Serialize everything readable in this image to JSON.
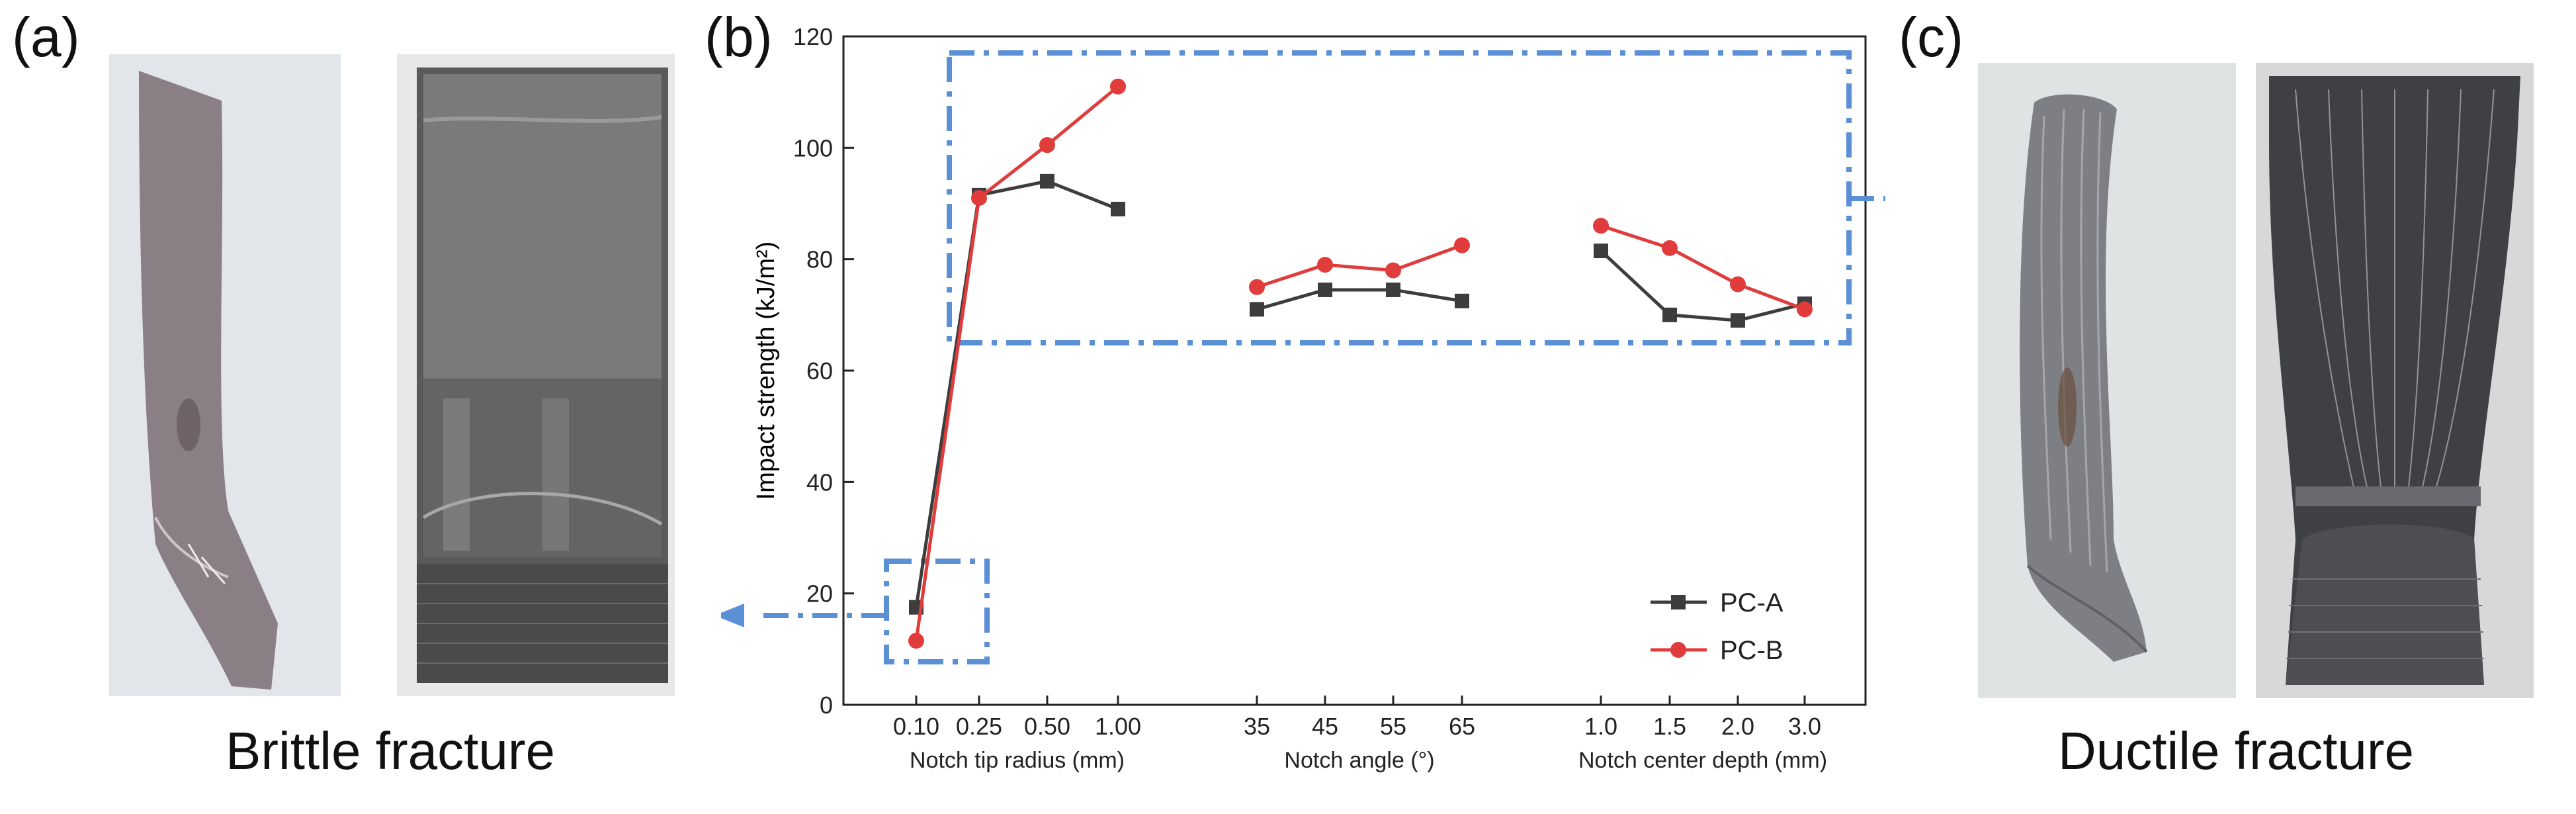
{
  "panels": {
    "a": {
      "label": "(a)",
      "caption": "Brittle fracture"
    },
    "b": {
      "label": "(b)"
    },
    "c": {
      "label": "(c)",
      "caption": "Ductile fracture"
    }
  },
  "chart_data": {
    "type": "line",
    "ylabel": "Impact strength (kJ/m²)",
    "ylim": [
      0,
      120
    ],
    "yticks": [
      0,
      20,
      40,
      60,
      80,
      100,
      120
    ],
    "groups": [
      {
        "label": "Notch tip radius (mm)",
        "categories": [
          "0.10",
          "0.25",
          "0.50",
          "1.00"
        ]
      },
      {
        "label": "Notch angle (°)",
        "categories": [
          "35",
          "45",
          "55",
          "65"
        ]
      },
      {
        "label": "Notch center depth (mm)",
        "categories": [
          "1.0",
          "1.5",
          "2.0",
          "3.0"
        ]
      }
    ],
    "series": [
      {
        "name": "PC-A",
        "color": "#3d3d3d",
        "marker": "square",
        "values": [
          [
            17.5,
            91.5,
            94,
            89
          ],
          [
            71,
            74.5,
            74.5,
            72.5
          ],
          [
            81.5,
            70,
            69,
            72
          ]
        ]
      },
      {
        "name": "PC-B",
        "color": "#e03c3c",
        "marker": "circle",
        "values": [
          [
            11.5,
            91,
            100.5,
            111
          ],
          [
            75,
            79,
            78,
            82.5
          ],
          [
            86,
            82,
            75.5,
            71
          ]
        ]
      }
    ],
    "legend": "bottom-right",
    "annotation_color": "#5b8fd6"
  }
}
